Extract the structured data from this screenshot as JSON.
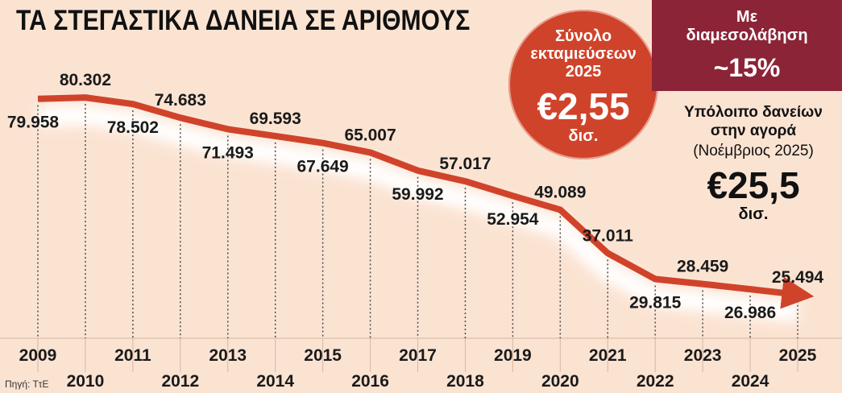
{
  "title": "ΤΑ ΣΤΕΓΑΣΤΙΚΑ ΔΑΝΕΙΑ ΣΕ ΑΡΙΘΜΟΥΣ",
  "source": "Πηγή: ΤτΕ",
  "disbursements": {
    "label_line1": "Σύνολο",
    "label_line2": "εκταμιεύσεων",
    "label_line3": "2025",
    "amount": "€2,55",
    "unit": "δισ."
  },
  "intermediation": {
    "label_line1": "Με",
    "label_line2": "διαμεσολάβηση",
    "value": "~15%"
  },
  "balance": {
    "label_line1": "Υπόλοιπο δανείων",
    "label_line2": "στην αγορά",
    "period": "(Νοέμβριος 2025)",
    "amount": "€25,5",
    "unit": "δισ."
  },
  "colors": {
    "background": "#fbe3d2",
    "line": "#d0432b",
    "circle": "#d0432b",
    "banner": "#8b2437",
    "text": "#111111"
  },
  "chart_data": {
    "type": "line",
    "title": "ΤΑ ΣΤΕΓΑΣΤΙΚΑ ΔΑΝΕΙΑ ΣΕ ΑΡΙΘΜΟΥΣ",
    "xlabel": "",
    "ylabel": "",
    "grid": false,
    "legend": "none",
    "x": [
      2009,
      2010,
      2011,
      2012,
      2013,
      2014,
      2015,
      2016,
      2017,
      2018,
      2019,
      2020,
      2021,
      2022,
      2023,
      2024,
      2025
    ],
    "values": [
      79958,
      80302,
      78502,
      74683,
      71493,
      69593,
      67649,
      65007,
      59992,
      57017,
      52954,
      49089,
      37011,
      29815,
      28459,
      26986,
      25494
    ],
    "value_labels": [
      "79.958",
      "80.302",
      "78.502",
      "74.683",
      "71.493",
      "69.593",
      "67.649",
      "65.007",
      "59.992",
      "57.017",
      "52.954",
      "49.089",
      "37.011",
      "29.815",
      "28.459",
      "26.986",
      "25.494"
    ],
    "tick_labels": [
      "2009",
      "2010",
      "2011",
      "2012",
      "2013",
      "2014",
      "2015",
      "2016",
      "2017",
      "2018",
      "2019",
      "2020",
      "2021",
      "2022",
      "2023",
      "2024",
      "2025"
    ],
    "label_above": [
      false,
      true,
      false,
      true,
      false,
      true,
      false,
      true,
      false,
      true,
      false,
      true,
      true,
      false,
      true,
      false,
      true
    ]
  }
}
